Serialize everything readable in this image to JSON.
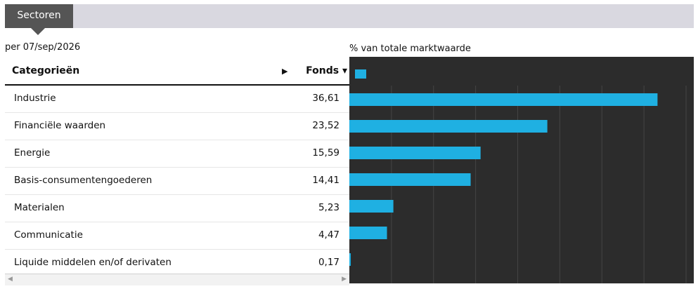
{
  "tab": {
    "label": "Sectoren"
  },
  "as_of": "per 07/sep/2026",
  "chart_caption": "% van totale marktwaarde",
  "table": {
    "header_category": "Categorieën",
    "header_fonds": "Fonds ▾",
    "header_play_icon": "▶",
    "rows": [
      {
        "name": "Industrie",
        "value": "36,61"
      },
      {
        "name": "Financiële waarden",
        "value": "23,52"
      },
      {
        "name": "Energie",
        "value": "15,59"
      },
      {
        "name": "Basis-consumentengoederen",
        "value": "14,41"
      },
      {
        "name": "Materialen",
        "value": "5,23"
      },
      {
        "name": "Communicatie",
        "value": "4,47"
      },
      {
        "name": "Liquide middelen en/of derivaten",
        "value": "0,17"
      }
    ]
  },
  "scrollbar": {
    "left_icon": "◀",
    "right_icon": "▶"
  },
  "colors": {
    "bar": "#1fb0e2",
    "chart_bg": "#2c2c2c",
    "grid": "#444444"
  },
  "chart_data": {
    "type": "bar",
    "orientation": "horizontal",
    "categories": [
      "Industrie",
      "Financiële waarden",
      "Energie",
      "Basis-consumentengoederen",
      "Materialen",
      "Communicatie",
      "Liquide middelen en/of derivaten"
    ],
    "series": [
      {
        "values": [
          36.61,
          23.52,
          15.59,
          14.41,
          5.23,
          4.47,
          0.17
        ]
      }
    ],
    "xlim": [
      0,
      40
    ],
    "grid": true,
    "legend": "top-left",
    "title": "% van totale marktwaarde"
  }
}
